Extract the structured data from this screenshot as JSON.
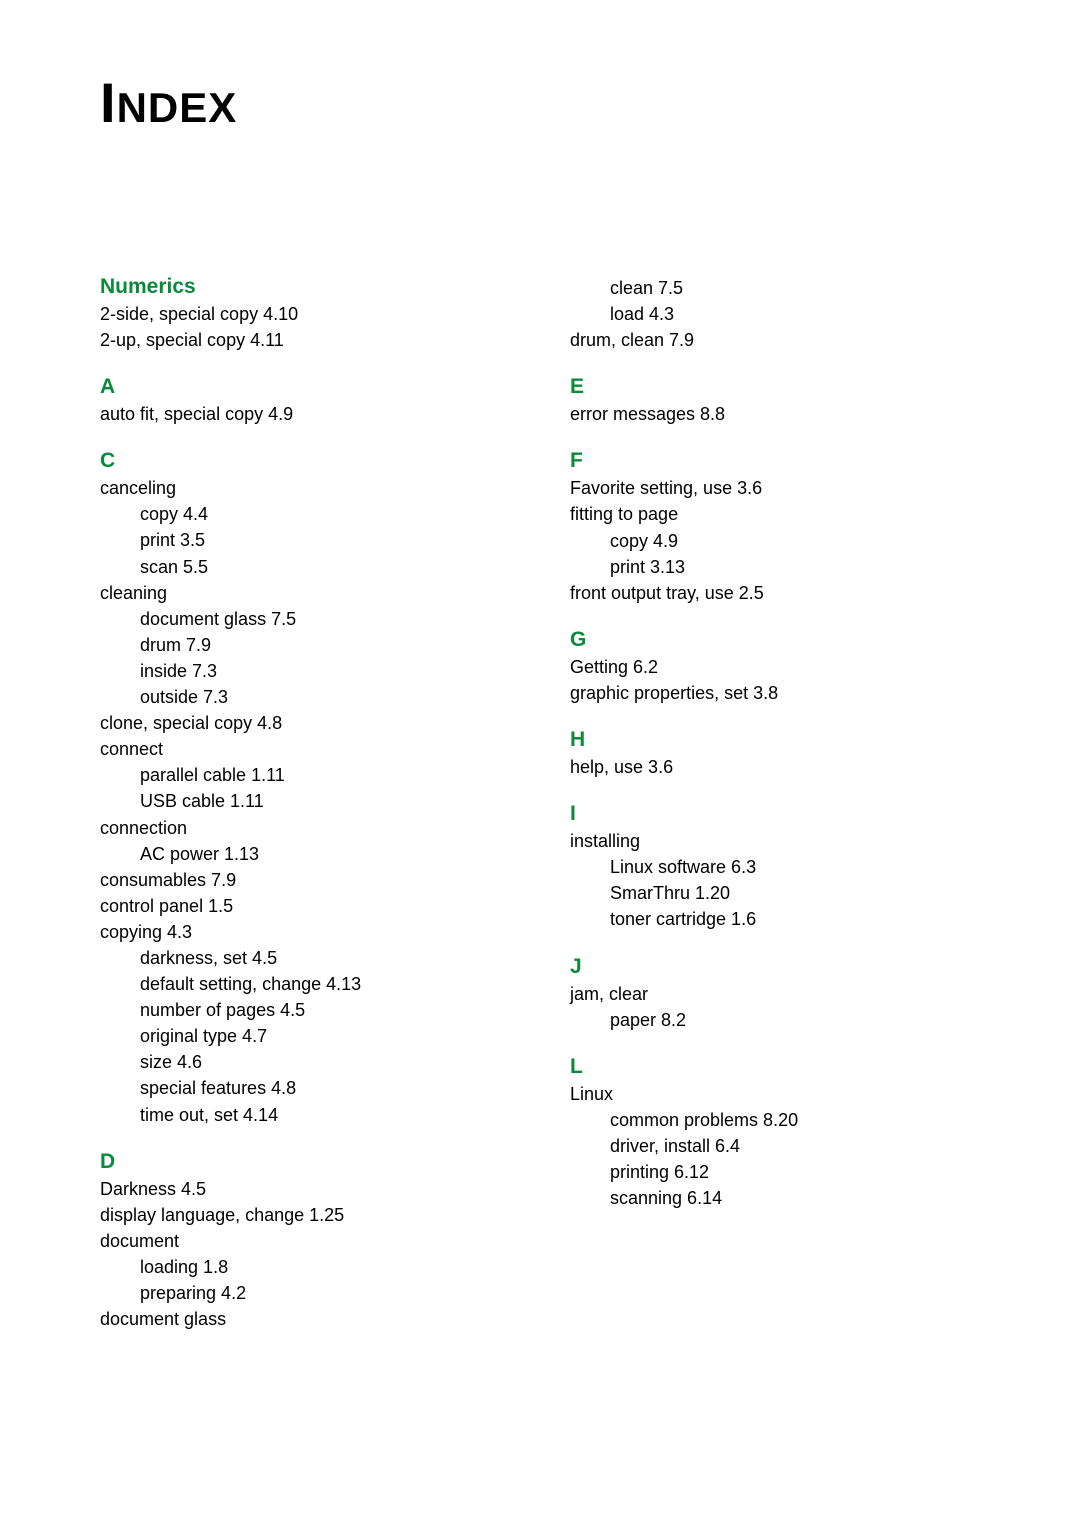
{
  "title_first": "I",
  "title_rest": "NDEX",
  "col1": [
    {
      "type": "heading",
      "text": "Numerics"
    },
    {
      "type": "entry",
      "text": "2-side, special copy 4.10"
    },
    {
      "type": "entry",
      "text": "2-up, special copy 4.11"
    },
    {
      "type": "heading",
      "text": "A"
    },
    {
      "type": "entry",
      "text": "auto fit, special copy 4.9"
    },
    {
      "type": "heading",
      "text": "C"
    },
    {
      "type": "entry",
      "text": "canceling"
    },
    {
      "type": "sub",
      "text": "copy 4.4"
    },
    {
      "type": "sub",
      "text": "print 3.5"
    },
    {
      "type": "sub",
      "text": "scan 5.5"
    },
    {
      "type": "entry",
      "text": "cleaning"
    },
    {
      "type": "sub",
      "text": "document glass 7.5"
    },
    {
      "type": "sub",
      "text": "drum 7.9"
    },
    {
      "type": "sub",
      "text": "inside 7.3"
    },
    {
      "type": "sub",
      "text": "outside 7.3"
    },
    {
      "type": "entry",
      "text": "clone, special copy 4.8"
    },
    {
      "type": "entry",
      "text": "connect"
    },
    {
      "type": "sub",
      "text": "parallel cable 1.11"
    },
    {
      "type": "sub",
      "text": "USB cable 1.11"
    },
    {
      "type": "entry",
      "text": "connection"
    },
    {
      "type": "sub",
      "text": "AC power 1.13"
    },
    {
      "type": "entry",
      "text": "consumables 7.9"
    },
    {
      "type": "entry",
      "text": "control panel 1.5"
    },
    {
      "type": "entry",
      "text": "copying 4.3"
    },
    {
      "type": "sub",
      "text": "darkness, set 4.5"
    },
    {
      "type": "sub",
      "text": "default setting, change 4.13"
    },
    {
      "type": "sub",
      "text": "number of pages 4.5"
    },
    {
      "type": "sub",
      "text": "original type 4.7"
    },
    {
      "type": "sub",
      "text": "size 4.6"
    },
    {
      "type": "sub",
      "text": "special features 4.8"
    },
    {
      "type": "sub",
      "text": "time out, set 4.14"
    },
    {
      "type": "heading",
      "text": "D"
    },
    {
      "type": "entry",
      "text": "Darkness 4.5"
    },
    {
      "type": "entry",
      "text": "display language, change 1.25"
    },
    {
      "type": "entry",
      "text": "document"
    },
    {
      "type": "sub",
      "text": "loading 1.8"
    },
    {
      "type": "sub",
      "text": "preparing 4.2"
    },
    {
      "type": "entry",
      "text": "document glass"
    }
  ],
  "col2": [
    {
      "type": "sub",
      "text": "clean 7.5"
    },
    {
      "type": "sub",
      "text": "load 4.3"
    },
    {
      "type": "entry",
      "text": "drum, clean 7.9"
    },
    {
      "type": "heading",
      "text": "E"
    },
    {
      "type": "entry",
      "text": "error messages 8.8"
    },
    {
      "type": "heading",
      "text": "F"
    },
    {
      "type": "entry",
      "text": "Favorite setting, use 3.6"
    },
    {
      "type": "entry",
      "text": "fitting to page"
    },
    {
      "type": "sub",
      "text": "copy 4.9"
    },
    {
      "type": "sub",
      "text": "print 3.13"
    },
    {
      "type": "entry",
      "text": "front output tray, use 2.5"
    },
    {
      "type": "heading",
      "text": "G"
    },
    {
      "type": "entry",
      "text": "Getting 6.2"
    },
    {
      "type": "entry",
      "text": "graphic properties, set 3.8"
    },
    {
      "type": "heading",
      "text": "H"
    },
    {
      "type": "entry",
      "text": "help, use 3.6"
    },
    {
      "type": "heading",
      "text": "I"
    },
    {
      "type": "entry",
      "text": "installing"
    },
    {
      "type": "sub",
      "text": "Linux software 6.3"
    },
    {
      "type": "sub",
      "text": "SmarThru 1.20"
    },
    {
      "type": "sub",
      "text": "toner cartridge 1.6"
    },
    {
      "type": "heading",
      "text": "J"
    },
    {
      "type": "entry",
      "text": "jam, clear"
    },
    {
      "type": "sub",
      "text": "paper 8.2"
    },
    {
      "type": "heading",
      "text": "L"
    },
    {
      "type": "entry",
      "text": "Linux"
    },
    {
      "type": "sub",
      "text": "common problems 8.20"
    },
    {
      "type": "sub",
      "text": "driver, install 6.4"
    },
    {
      "type": "sub",
      "text": "printing 6.12"
    },
    {
      "type": "sub",
      "text": "scanning 6.14"
    }
  ]
}
